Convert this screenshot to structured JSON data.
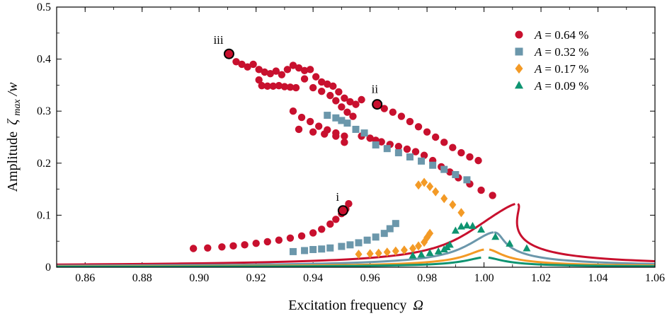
{
  "chart_data": {
    "type": "scatter",
    "title": "",
    "xlabel_main": "Excitation frequency",
    "xlabel_symbol": "Ω",
    "ylabel_main": "Amplitude",
    "ylabel_symbol": "ζ",
    "ylabel_sub": "max",
    "ylabel_tail": "/w",
    "xlim": [
      0.85,
      1.06
    ],
    "ylim": [
      0,
      0.5
    ],
    "xticks": [
      "0.86",
      "0.88",
      "0.90",
      "0.92",
      "0.94",
      "0.96",
      "0.98",
      "1.00",
      "1.02",
      "1.04",
      "1.06"
    ],
    "xtick_values": [
      0.86,
      0.88,
      0.9,
      0.92,
      0.94,
      0.96,
      0.98,
      1.0,
      1.02,
      1.04,
      1.06
    ],
    "yticks": [
      "0",
      "0.1",
      "0.2",
      "0.3",
      "0.4",
      "0.5"
    ],
    "ytick_values": [
      0,
      0.1,
      0.2,
      0.3,
      0.4,
      0.5
    ],
    "legend_position": "top-right",
    "annotations": [
      {
        "label": "i",
        "x": 0.9505,
        "y": 0.109
      },
      {
        "label": "ii",
        "x": 0.9625,
        "y": 0.313
      },
      {
        "label": "iii",
        "x": 0.9105,
        "y": 0.41
      }
    ],
    "series": [
      {
        "name_var": "A",
        "name_value": "= 0.64 %",
        "color": "#c8102e",
        "marker": "circle",
        "points": [
          [
            0.898,
            0.036
          ],
          [
            0.903,
            0.037
          ],
          [
            0.908,
            0.039
          ],
          [
            0.912,
            0.041
          ],
          [
            0.916,
            0.043
          ],
          [
            0.92,
            0.046
          ],
          [
            0.924,
            0.049
          ],
          [
            0.928,
            0.052
          ],
          [
            0.932,
            0.056
          ],
          [
            0.936,
            0.06
          ],
          [
            0.94,
            0.066
          ],
          [
            0.943,
            0.073
          ],
          [
            0.946,
            0.083
          ],
          [
            0.948,
            0.092
          ],
          [
            0.95,
            0.103
          ],
          [
            0.9515,
            0.112
          ],
          [
            0.9525,
            0.122
          ],
          [
            0.9105,
            0.41
          ],
          [
            0.913,
            0.395
          ],
          [
            0.915,
            0.39
          ],
          [
            0.917,
            0.385
          ],
          [
            0.919,
            0.39
          ],
          [
            0.921,
            0.38
          ],
          [
            0.923,
            0.375
          ],
          [
            0.925,
            0.372
          ],
          [
            0.927,
            0.377
          ],
          [
            0.929,
            0.37
          ],
          [
            0.931,
            0.38
          ],
          [
            0.933,
            0.388
          ],
          [
            0.935,
            0.383
          ],
          [
            0.937,
            0.378
          ],
          [
            0.939,
            0.38
          ],
          [
            0.941,
            0.366
          ],
          [
            0.943,
            0.356
          ],
          [
            0.945,
            0.352
          ],
          [
            0.947,
            0.348
          ],
          [
            0.949,
            0.337
          ],
          [
            0.951,
            0.325
          ],
          [
            0.953,
            0.318
          ],
          [
            0.955,
            0.313
          ],
          [
            0.957,
            0.322
          ],
          [
            0.921,
            0.36
          ],
          [
            0.922,
            0.349
          ],
          [
            0.924,
            0.348
          ],
          [
            0.926,
            0.348
          ],
          [
            0.928,
            0.349
          ],
          [
            0.93,
            0.347
          ],
          [
            0.932,
            0.346
          ],
          [
            0.934,
            0.345
          ],
          [
            0.937,
            0.362
          ],
          [
            0.94,
            0.345
          ],
          [
            0.943,
            0.338
          ],
          [
            0.946,
            0.33
          ],
          [
            0.948,
            0.32
          ],
          [
            0.95,
            0.308
          ],
          [
            0.952,
            0.298
          ],
          [
            0.954,
            0.29
          ],
          [
            0.933,
            0.3
          ],
          [
            0.936,
            0.288
          ],
          [
            0.939,
            0.28
          ],
          [
            0.942,
            0.271
          ],
          [
            0.945,
            0.264
          ],
          [
            0.948,
            0.258
          ],
          [
            0.951,
            0.252
          ],
          [
            0.935,
            0.265
          ],
          [
            0.94,
            0.26
          ],
          [
            0.944,
            0.256
          ],
          [
            0.948,
            0.252
          ],
          [
            0.951,
            0.24
          ],
          [
            0.957,
            0.252
          ],
          [
            0.96,
            0.248
          ],
          [
            0.962,
            0.244
          ],
          [
            0.964,
            0.241
          ],
          [
            0.967,
            0.236
          ],
          [
            0.97,
            0.232
          ],
          [
            0.973,
            0.227
          ],
          [
            0.976,
            0.222
          ],
          [
            0.979,
            0.215
          ],
          [
            0.982,
            0.205
          ],
          [
            0.985,
            0.193
          ],
          [
            0.988,
            0.183
          ],
          [
            0.991,
            0.172
          ],
          [
            0.995,
            0.16
          ],
          [
            0.999,
            0.148
          ],
          [
            1.003,
            0.138
          ],
          [
            0.9625,
            0.313
          ],
          [
            0.965,
            0.305
          ],
          [
            0.968,
            0.298
          ],
          [
            0.971,
            0.29
          ],
          [
            0.974,
            0.28
          ],
          [
            0.977,
            0.27
          ],
          [
            0.98,
            0.26
          ],
          [
            0.983,
            0.25
          ],
          [
            0.986,
            0.24
          ],
          [
            0.989,
            0.23
          ],
          [
            0.992,
            0.22
          ],
          [
            0.995,
            0.212
          ],
          [
            0.998,
            0.205
          ]
        ]
      },
      {
        "name_var": "A",
        "name_value": "= 0.32 %",
        "color": "#6b97ab",
        "marker": "square",
        "points": [
          [
            0.933,
            0.03
          ],
          [
            0.937,
            0.032
          ],
          [
            0.94,
            0.034
          ],
          [
            0.943,
            0.035
          ],
          [
            0.946,
            0.037
          ],
          [
            0.95,
            0.04
          ],
          [
            0.953,
            0.043
          ],
          [
            0.956,
            0.047
          ],
          [
            0.959,
            0.052
          ],
          [
            0.962,
            0.058
          ],
          [
            0.965,
            0.065
          ],
          [
            0.967,
            0.074
          ],
          [
            0.969,
            0.084
          ],
          [
            0.945,
            0.292
          ],
          [
            0.948,
            0.287
          ],
          [
            0.95,
            0.282
          ],
          [
            0.952,
            0.277
          ],
          [
            0.955,
            0.265
          ],
          [
            0.958,
            0.258
          ],
          [
            0.962,
            0.235
          ],
          [
            0.966,
            0.228
          ],
          [
            0.97,
            0.22
          ],
          [
            0.974,
            0.212
          ],
          [
            0.978,
            0.204
          ],
          [
            0.982,
            0.196
          ],
          [
            0.986,
            0.188
          ],
          [
            0.99,
            0.178
          ],
          [
            0.994,
            0.168
          ]
        ]
      },
      {
        "name_var": "A",
        "name_value": "= 0.17 %",
        "color": "#f39a26",
        "marker": "diamond",
        "points": [
          [
            0.956,
            0.025
          ],
          [
            0.96,
            0.026
          ],
          [
            0.963,
            0.027
          ],
          [
            0.966,
            0.029
          ],
          [
            0.969,
            0.031
          ],
          [
            0.972,
            0.033
          ],
          [
            0.975,
            0.036
          ],
          [
            0.977,
            0.041
          ],
          [
            0.979,
            0.048
          ],
          [
            0.98,
            0.057
          ],
          [
            0.981,
            0.065
          ],
          [
            0.977,
            0.158
          ],
          [
            0.979,
            0.163
          ],
          [
            0.981,
            0.155
          ],
          [
            0.983,
            0.145
          ],
          [
            0.986,
            0.132
          ],
          [
            0.989,
            0.12
          ],
          [
            0.992,
            0.105
          ]
        ]
      },
      {
        "name_var": "A",
        "name_value": "= 0.09 %",
        "color": "#0e9471",
        "marker": "triangle",
        "points": [
          [
            0.975,
            0.022
          ],
          [
            0.978,
            0.024
          ],
          [
            0.981,
            0.027
          ],
          [
            0.984,
            0.03
          ],
          [
            0.986,
            0.034
          ],
          [
            0.987,
            0.038
          ],
          [
            0.988,
            0.043
          ],
          [
            0.99,
            0.07
          ],
          [
            0.992,
            0.078
          ],
          [
            0.994,
            0.08
          ],
          [
            0.996,
            0.079
          ],
          [
            0.999,
            0.072
          ],
          [
            1.004,
            0.058
          ],
          [
            1.009,
            0.045
          ],
          [
            1.015,
            0.036
          ]
        ]
      }
    ]
  }
}
